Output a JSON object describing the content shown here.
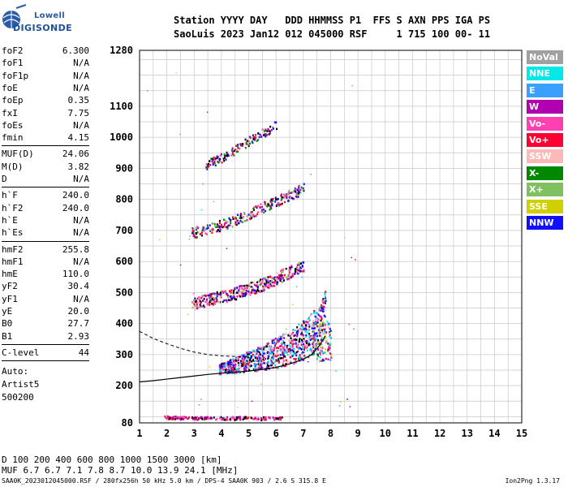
{
  "logo": {
    "brand_top": "Lowell",
    "brand_main": "DIGISONDE"
  },
  "header": {
    "line1": "Station YYYY DAY   DDD HHMMSS P1  FFS S AXN PPS IGA PS",
    "line2": "SaoLuis 2023 Jan12 012 045000 RSF     1 715 100 00- 11"
  },
  "left_panel": {
    "group1": [
      {
        "name": "foF2",
        "value": "6.300"
      },
      {
        "name": "foF1",
        "value": "N/A"
      },
      {
        "name": "foF1p",
        "value": "N/A"
      },
      {
        "name": "foE",
        "value": "N/A"
      },
      {
        "name": "foEp",
        "value": "0.35"
      },
      {
        "name": "fxI",
        "value": "7.75"
      },
      {
        "name": "foEs",
        "value": "N/A"
      },
      {
        "name": "fmin",
        "value": "4.15"
      }
    ],
    "group2": [
      {
        "name": "MUF(D)",
        "value": "24.06"
      },
      {
        "name": "M(D)",
        "value": "3.82"
      },
      {
        "name": "D",
        "value": "N/A"
      }
    ],
    "group3": [
      {
        "name": "h`F",
        "value": "240.0"
      },
      {
        "name": "h`F2",
        "value": "240.0"
      },
      {
        "name": "h`E",
        "value": "N/A"
      },
      {
        "name": "h`Es",
        "value": "N/A"
      }
    ],
    "group4": [
      {
        "name": "hmF2",
        "value": "255.8"
      },
      {
        "name": "hmF1",
        "value": "N/A"
      },
      {
        "name": "hmE",
        "value": "110.0"
      },
      {
        "name": "yF2",
        "value": "30.4"
      },
      {
        "name": "yF1",
        "value": "N/A"
      },
      {
        "name": "yE",
        "value": "20.0"
      },
      {
        "name": "B0",
        "value": "27.7"
      },
      {
        "name": "B1",
        "value": "2.93"
      }
    ],
    "group5": [
      {
        "name": "C-level",
        "value": "44"
      }
    ],
    "auto": [
      "Auto:",
      "Artist5",
      "500200"
    ]
  },
  "legend": [
    {
      "label": "NoVal",
      "color": "#a0a0a0"
    },
    {
      "label": "NNE",
      "color": "#00e8e8"
    },
    {
      "label": "E",
      "color": "#3aa0ff"
    },
    {
      "label": "W",
      "color": "#b000b0"
    },
    {
      "label": "Vo-",
      "color": "#ff40b0"
    },
    {
      "label": "Vo+",
      "color": "#ff0030"
    },
    {
      "label": "SSW",
      "color": "#ffb8b8"
    },
    {
      "label": "X-",
      "color": "#008800"
    },
    {
      "label": "X+",
      "color": "#80c060"
    },
    {
      "label": "SSE",
      "color": "#d0d000"
    },
    {
      "label": "NNW",
      "color": "#1010ff"
    }
  ],
  "footer": {
    "d_line": "D     100  200  400  600  800 1000 1500 3000 [km]",
    "muf_line": "MUF   6.7  6.7  7.1  7.8  8.7 10.0 13.9 24.1 [MHz]",
    "file_line": "SAA0K_2023012045000.RSF / 280fx256h 50 kHz 5.0 km / DPS-4 SAA0K 903 / 2.6 S 315.8 E",
    "version": "Ion2Png 1.3.17"
  },
  "chart_data": {
    "type": "scatter",
    "x_ticks": [
      1,
      2,
      3,
      4,
      5,
      6,
      7,
      8,
      9,
      10,
      11,
      12,
      13,
      14,
      15
    ],
    "y_ticks": [
      80,
      200,
      300,
      400,
      500,
      600,
      700,
      800,
      900,
      1000,
      1100,
      1280
    ],
    "xlim": [
      1,
      15
    ],
    "ylim": [
      80,
      1280
    ],
    "grid": true,
    "traces": [
      {
        "name": "F2 virtual-height trace",
        "points": [
          [
            1.0,
            212
          ],
          [
            1.5,
            216
          ],
          [
            2.0,
            221
          ],
          [
            2.5,
            226
          ],
          [
            3.0,
            231
          ],
          [
            3.5,
            236
          ],
          [
            4.0,
            240
          ],
          [
            4.5,
            243
          ],
          [
            5.0,
            247
          ],
          [
            5.5,
            252
          ],
          [
            6.0,
            259
          ],
          [
            6.5,
            270
          ],
          [
            7.0,
            285
          ],
          [
            7.3,
            300
          ],
          [
            7.6,
            330
          ],
          [
            7.8,
            360
          ]
        ]
      },
      {
        "name": "dashed profile",
        "points": [
          [
            1.0,
            375
          ],
          [
            1.5,
            352
          ],
          [
            2.0,
            335
          ],
          [
            2.5,
            320
          ],
          [
            3.0,
            308
          ],
          [
            3.5,
            300
          ],
          [
            4.0,
            296
          ],
          [
            4.5,
            294
          ],
          [
            5.0,
            292
          ]
        ]
      },
      {
        "name": "second hop",
        "points": [
          [
            2.8,
            455
          ],
          [
            3.5,
            470
          ],
          [
            4.0,
            480
          ],
          [
            4.5,
            492
          ],
          [
            5.0,
            505
          ],
          [
            5.5,
            520
          ],
          [
            6.0,
            540
          ],
          [
            6.5,
            560
          ],
          [
            7.0,
            580
          ]
        ]
      },
      {
        "name": "third hop",
        "points": [
          [
            2.8,
            685
          ],
          [
            3.5,
            700
          ],
          [
            4.0,
            712
          ],
          [
            4.5,
            728
          ],
          [
            5.0,
            748
          ],
          [
            5.5,
            770
          ],
          [
            6.0,
            790
          ],
          [
            6.5,
            810
          ],
          [
            7.0,
            830
          ]
        ]
      },
      {
        "name": "fourth hop",
        "points": [
          [
            3.0,
            890
          ],
          [
            3.5,
            910
          ],
          [
            4.0,
            930
          ],
          [
            4.5,
            955
          ],
          [
            5.0,
            985
          ],
          [
            5.5,
            1010
          ],
          [
            6.0,
            1035
          ]
        ]
      },
      {
        "name": "E-region echoes",
        "points": [
          [
            1.8,
            98
          ],
          [
            2.3,
            97
          ],
          [
            2.8,
            96
          ],
          [
            3.3,
            95
          ],
          [
            3.8,
            96
          ],
          [
            4.3,
            95
          ],
          [
            4.8,
            96
          ],
          [
            5.3,
            94
          ],
          [
            5.8,
            95
          ],
          [
            6.2,
            96
          ]
        ]
      }
    ]
  }
}
